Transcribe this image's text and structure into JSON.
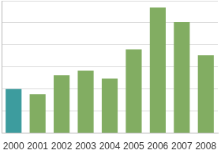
{
  "chart_data": {
    "type": "bar",
    "categories": [
      "2000",
      "2001",
      "2002",
      "2003",
      "2004",
      "2005",
      "2006",
      "2007",
      "2008"
    ],
    "values": [
      2.0,
      1.77,
      2.63,
      2.83,
      2.47,
      3.8,
      5.7,
      5.03,
      3.53
    ],
    "colors": [
      "#3d9c9e",
      "#82ad62",
      "#82ad62",
      "#82ad62",
      "#82ad62",
      "#82ad62",
      "#82ad62",
      "#82ad62",
      "#82ad62"
    ],
    "ylim": [
      0,
      6
    ],
    "yticks": [
      0,
      1,
      2,
      3,
      4,
      5,
      6
    ],
    "grid": true,
    "tick_labels": "x"
  }
}
